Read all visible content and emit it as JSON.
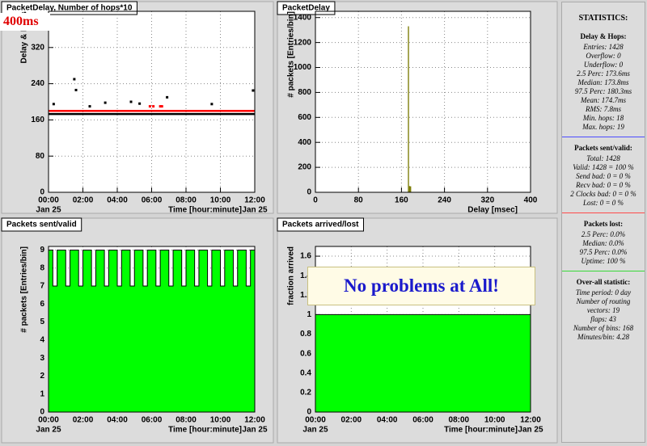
{
  "chart_data": [
    {
      "type": "scatter",
      "title": "PacketDelay, Number of hops*10",
      "annotation": "400ms",
      "x_label": "Time [hour:minute]",
      "y_label": "Delay & Hops",
      "x_date": "Jan 25",
      "xlim": [
        0,
        12
      ],
      "ylim": [
        0,
        400
      ],
      "grid": true,
      "xticks": [
        {
          "value": 0,
          "label": "00:00"
        },
        {
          "value": 2,
          "label": "02:00"
        },
        {
          "value": 4,
          "label": "04:00"
        },
        {
          "value": 6,
          "label": "06:00"
        },
        {
          "value": 8,
          "label": "08:00"
        },
        {
          "value": 10,
          "label": "10:00"
        },
        {
          "value": 12,
          "label": "12:00"
        }
      ],
      "yticks": [
        0,
        80,
        160,
        240,
        320
      ],
      "series": [
        {
          "mode": "line",
          "color": "#000000",
          "x": [
            0,
            12
          ],
          "values": [
            173,
            173
          ]
        },
        {
          "mode": "line",
          "color": "#ff0000",
          "x": [
            0,
            12
          ],
          "values": [
            180,
            180
          ]
        },
        {
          "mode": "markers",
          "color": "#000000",
          "x": [
            0.3,
            1.5,
            1.6,
            2.4,
            3.3,
            4.8,
            5.3,
            6.9,
            9.5,
            11.9
          ],
          "values": [
            195,
            250,
            226,
            190,
            198,
            200,
            196,
            210,
            195,
            225
          ]
        },
        {
          "mode": "markers",
          "color": "#ff0000",
          "x": [
            5.9,
            6.1,
            6.5,
            6.6
          ],
          "values": [
            190,
            190,
            190,
            190
          ]
        }
      ]
    },
    {
      "type": "histogram",
      "title": "PacketDelay",
      "x_label": "Delay [msec]",
      "y_label": "# packets [Entries/bin]",
      "xlim": [
        0,
        400
      ],
      "ylim": [
        0,
        1450
      ],
      "grid": true,
      "color": "#7a7a00",
      "xticks": [
        0,
        80,
        160,
        240,
        320,
        400
      ],
      "yticks": [
        0,
        200,
        400,
        600,
        800,
        1000,
        1200,
        1400
      ],
      "bins": [
        172,
        174,
        176,
        178
      ],
      "values": [
        1330,
        50,
        48
      ]
    },
    {
      "type": "area",
      "title": "Packets sent/valid",
      "x_label": "Time [hour:minute]",
      "y_label": "# packets [Entries/bin]",
      "x_date": "Jan 25",
      "xlim": [
        0,
        12
      ],
      "ylim": [
        0,
        9.2
      ],
      "grid": true,
      "color": "#00ff00",
      "step": true,
      "xticks": [
        {
          "value": 0,
          "label": "00:00"
        },
        {
          "value": 2,
          "label": "02:00"
        },
        {
          "value": 4,
          "label": "04:00"
        },
        {
          "value": 6,
          "label": "06:00"
        },
        {
          "value": 8,
          "label": "08:00"
        },
        {
          "value": 10,
          "label": "10:00"
        },
        {
          "value": 12,
          "label": "12:00"
        }
      ],
      "yticks": [
        0,
        1,
        2,
        3,
        4,
        5,
        6,
        7,
        8,
        9
      ],
      "x": [
        0,
        0.25,
        0.5,
        0.75,
        1,
        1.25,
        1.5,
        1.75,
        2,
        2.25,
        2.5,
        2.75,
        3,
        3.25,
        3.5,
        3.75,
        4,
        4.25,
        4.5,
        4.75,
        5,
        5.25,
        5.5,
        5.75,
        6,
        6.25,
        6.5,
        6.75,
        7,
        7.25,
        7.5,
        7.75,
        8,
        8.25,
        8.5,
        8.75,
        9,
        9.25,
        9.5,
        9.75,
        10,
        10.25,
        10.5,
        10.75,
        11,
        11.25,
        11.5,
        11.75,
        12
      ],
      "values": [
        9,
        7,
        9,
        9,
        7,
        9,
        9,
        7,
        9,
        9,
        7,
        9,
        9,
        7,
        9,
        9,
        7,
        9,
        9,
        7,
        9,
        9,
        7,
        9,
        9,
        7,
        9,
        9,
        7,
        9,
        9,
        7,
        9,
        9,
        7,
        9,
        9,
        7,
        9,
        9,
        7,
        9,
        9,
        7,
        9,
        9,
        7,
        9,
        9
      ]
    },
    {
      "type": "area",
      "title": "Packets arrived/lost",
      "x_label": "Time [hour:minute]",
      "y_label": "fraction arrived",
      "x_date": "Jan 25",
      "annotation": "No problems at All!",
      "xlim": [
        0,
        12
      ],
      "ylim": [
        0,
        1.7
      ],
      "grid": true,
      "color": "#00ff00",
      "step": false,
      "xticks": [
        {
          "value": 0,
          "label": "00:00"
        },
        {
          "value": 2,
          "label": "02:00"
        },
        {
          "value": 4,
          "label": "04:00"
        },
        {
          "value": 6,
          "label": "06:00"
        },
        {
          "value": 8,
          "label": "08:00"
        },
        {
          "value": 10,
          "label": "10:00"
        },
        {
          "value": 12,
          "label": "12:00"
        }
      ],
      "yticks": [
        0,
        0.2,
        0.4,
        0.6,
        0.8,
        1,
        1.2,
        1.4,
        1.6
      ],
      "x": [
        0,
        12
      ],
      "values": [
        1,
        1
      ]
    }
  ],
  "statistics": {
    "title": "STATISTICS:",
    "sections": [
      {
        "heading": "Delay & Hops:",
        "lines": [
          "Entries: 1428",
          "Overflow: 0",
          "Underflow: 0",
          "2.5 Perc: 173.6ms",
          "Median: 173.8ms",
          "97.5 Perc: 180.3ms",
          "Mean: 174.7ms",
          "RMS: 7.8ms",
          "Min. hops: 18",
          "Max. hops: 19"
        ]
      },
      {
        "heading": "Packets sent/valid:",
        "lines": [
          "Total: 1428",
          "Valid: 1428 = 100 %",
          "Send bad: 0 = 0 %",
          "Recv bad: 0 = 0 %",
          "2 Clocks bad: 0 = 0 %",
          "Lost: 0 = 0 %"
        ]
      },
      {
        "heading": "Packets lost:",
        "lines": [
          "2.5 Perc: 0.0%",
          "Median: 0.0%",
          "97.5 Perc: 0.0%",
          "Uptime: 100 %"
        ]
      },
      {
        "heading": "Over-all statistic:",
        "lines": [
          "Time period: 0 day",
          "Number of routing vectors: 19",
          "flaps: 43",
          "Number of bins: 168",
          "Minutes/bin: 4.28"
        ]
      }
    ]
  }
}
